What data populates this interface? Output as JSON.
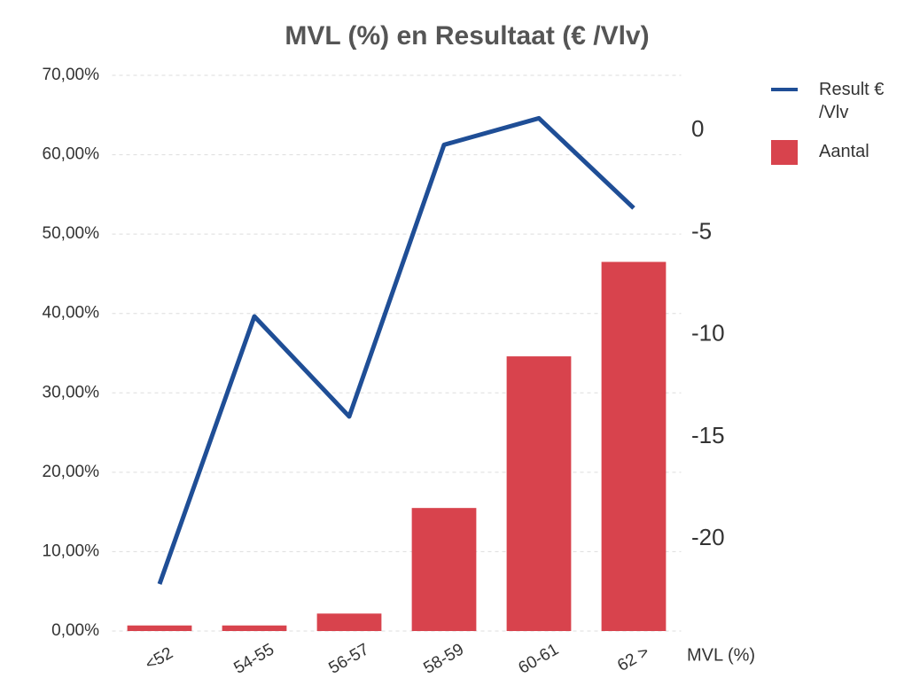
{
  "chart_data": {
    "type": "bar-line",
    "title": "MVL (%) en Resultaat (€ /Vlv)",
    "x_label": "MVL (%)",
    "categories": [
      "<52",
      "54-55",
      "56-57",
      "58-59",
      "60-61",
      "62 >"
    ],
    "series": [
      {
        "name": "Aantal",
        "type": "bar",
        "color": "#d8434d",
        "axis": "y",
        "values": [
          0.7,
          0.7,
          2.2,
          15.5,
          34.6,
          46.5
        ]
      },
      {
        "name": "Result € /Vlv",
        "type": "line",
        "color": "#1f4e96",
        "axis": "y2",
        "values": [
          -22.2,
          -9.1,
          -14.0,
          -0.7,
          0.6,
          -3.8
        ]
      }
    ],
    "ylim": [
      0,
      70
    ],
    "yticks": [
      {
        "value": 0,
        "label": "0,00%"
      },
      {
        "value": 10,
        "label": "10,00%"
      },
      {
        "value": 20,
        "label": "20,00%"
      },
      {
        "value": 30,
        "label": "30,00%"
      },
      {
        "value": 40,
        "label": "40,00%"
      },
      {
        "value": 50,
        "label": "50,00%"
      },
      {
        "value": 60,
        "label": "60,00%"
      },
      {
        "value": 70,
        "label": "70,00%"
      }
    ],
    "y2lim": [
      -24.5,
      2.7
    ],
    "y2ticks": [
      0,
      -5,
      -10,
      -15,
      -20
    ],
    "grid": true,
    "legend": "right"
  }
}
